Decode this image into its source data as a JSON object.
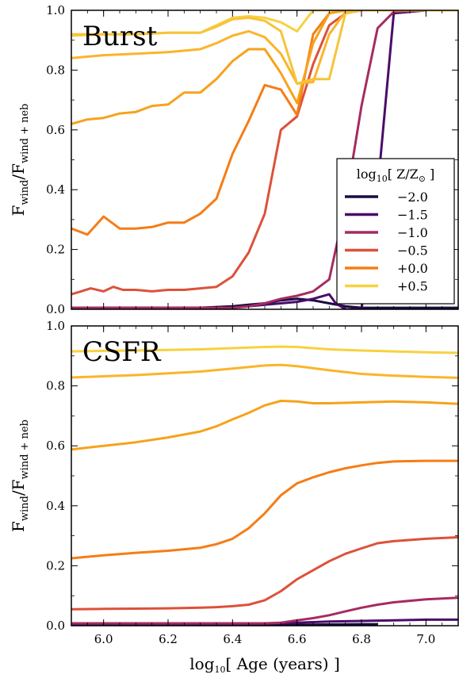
{
  "chart_data": [
    {
      "type": "line",
      "title": "Burst",
      "xlabel": "log10[ Age (years) ]",
      "ylabel": "F_wind/F_wind+neb",
      "xlim": [
        5.9,
        7.1
      ],
      "ylim": [
        0.0,
        1.0
      ],
      "xticks": [
        "6.0",
        "6.2",
        "6.4",
        "6.6",
        "6.8",
        "7.0"
      ],
      "yticks": [
        "0.0",
        "0.2",
        "0.4",
        "0.6",
        "0.8",
        "1.0"
      ],
      "grid": false,
      "legend": {
        "placement": "right",
        "title": "log10[ Z/Z⊙ ]",
        "entries": [
          "−2.0",
          "−1.5",
          "−1.0",
          "−0.5",
          "+0.0",
          "+0.5"
        ]
      },
      "series": [
        {
          "name": "−2.0",
          "color": "#1b0c41",
          "x": [
            5.9,
            6.0,
            6.1,
            6.2,
            6.3,
            6.4,
            6.45,
            6.5,
            6.55,
            6.6,
            6.65,
            6.7,
            6.75,
            6.8,
            6.85,
            6.9,
            7.0,
            7.1
          ],
          "y": [
            0.005,
            0.005,
            0.005,
            0.005,
            0.005,
            0.01,
            0.015,
            0.02,
            0.03,
            0.035,
            0.03,
            0.02,
            0.01,
            0.005,
            0.005,
            0.005,
            0.005,
            0.005
          ]
        },
        {
          "name": "−1.5",
          "color": "#4a0c6b",
          "x": [
            5.9,
            6.0,
            6.1,
            6.2,
            6.3,
            6.4,
            6.45,
            6.5,
            6.55,
            6.6,
            6.65,
            6.7,
            6.72,
            6.75,
            6.8,
            6.85,
            6.9,
            7.0,
            7.1
          ],
          "y": [
            0.0,
            0.005,
            0.005,
            0.005,
            0.005,
            0.005,
            0.01,
            0.015,
            0.02,
            0.025,
            0.035,
            0.05,
            0.02,
            0.0,
            0.0,
            0.4,
            0.99,
            1.0,
            1.0
          ]
        },
        {
          "name": "−1.0",
          "color": "#a52c60",
          "x": [
            5.9,
            6.0,
            6.1,
            6.2,
            6.3,
            6.4,
            6.45,
            6.5,
            6.55,
            6.6,
            6.65,
            6.7,
            6.75,
            6.8,
            6.85,
            6.9,
            7.0,
            7.1
          ],
          "y": [
            0.005,
            0.005,
            0.005,
            0.005,
            0.005,
            0.005,
            0.01,
            0.02,
            0.035,
            0.045,
            0.06,
            0.1,
            0.35,
            0.68,
            0.94,
            0.995,
            1.0,
            1.0
          ]
        },
        {
          "name": "−0.5",
          "color": "#dd513a",
          "x": [
            5.9,
            5.93,
            5.96,
            6.0,
            6.03,
            6.06,
            6.1,
            6.15,
            6.2,
            6.25,
            6.3,
            6.35,
            6.4,
            6.45,
            6.5,
            6.55,
            6.6,
            6.65,
            6.7,
            6.75,
            6.8,
            6.85,
            6.9,
            7.0,
            7.1
          ],
          "y": [
            0.05,
            0.06,
            0.07,
            0.06,
            0.075,
            0.065,
            0.065,
            0.06,
            0.065,
            0.065,
            0.07,
            0.075,
            0.11,
            0.19,
            0.32,
            0.6,
            0.645,
            0.82,
            0.95,
            0.99,
            1.0,
            1.0,
            1.0,
            1.0,
            1.0
          ]
        },
        {
          "name": "+0.0",
          "color": "#f57d15",
          "x": [
            5.9,
            5.95,
            6.0,
            6.05,
            6.1,
            6.15,
            6.2,
            6.25,
            6.3,
            6.35,
            6.4,
            6.45,
            6.5,
            6.55,
            6.6,
            6.65,
            6.7,
            6.75,
            6.8,
            6.85,
            6.9,
            7.0,
            7.1
          ],
          "y": [
            0.27,
            0.25,
            0.31,
            0.27,
            0.27,
            0.275,
            0.29,
            0.29,
            0.32,
            0.37,
            0.52,
            0.63,
            0.75,
            0.735,
            0.65,
            0.92,
            0.99,
            1.0,
            1.0,
            1.0,
            1.0,
            1.0,
            1.0
          ]
        },
        {
          "name": "+0.5",
          "color": "#f8d13f",
          "x": [
            5.9,
            6.0,
            6.1,
            6.2,
            6.3,
            6.35,
            6.4,
            6.45,
            6.5,
            6.55,
            6.6,
            6.65,
            6.7,
            6.75,
            6.8,
            6.85,
            6.9,
            7.0,
            7.1
          ],
          "y": [
            0.915,
            0.92,
            0.92,
            0.925,
            0.925,
            0.95,
            0.975,
            0.98,
            0.975,
            0.96,
            0.93,
            1.0,
            1.0,
            1.0,
            1.0,
            1.0,
            1.0,
            1.0,
            1.0
          ]
        },
        {
          "name": "",
          "color": "#f7a21b",
          "x": [
            5.9,
            5.95,
            6.0,
            6.05,
            6.1,
            6.15,
            6.2,
            6.25,
            6.3,
            6.35,
            6.4,
            6.45,
            6.5,
            6.55,
            6.6,
            6.65,
            6.7,
            6.75,
            6.8,
            7.1
          ],
          "y": [
            0.62,
            0.635,
            0.64,
            0.655,
            0.66,
            0.68,
            0.685,
            0.725,
            0.725,
            0.77,
            0.83,
            0.87,
            0.87,
            0.79,
            0.69,
            0.89,
            0.99,
            1.0,
            1.0,
            1.0
          ]
        },
        {
          "name": "",
          "color": "#fbb42a",
          "x": [
            5.9,
            6.0,
            6.1,
            6.2,
            6.3,
            6.35,
            6.4,
            6.45,
            6.5,
            6.55,
            6.6,
            6.65,
            6.7,
            6.75,
            6.8,
            7.1
          ],
          "y": [
            0.84,
            0.85,
            0.855,
            0.86,
            0.87,
            0.89,
            0.915,
            0.93,
            0.91,
            0.855,
            0.755,
            0.76,
            0.92,
            0.995,
            1.0,
            1.0
          ]
        },
        {
          "name": "",
          "color": "#f6c33a",
          "x": [
            5.9,
            6.0,
            6.1,
            6.2,
            6.3,
            6.35,
            6.4,
            6.45,
            6.5,
            6.55,
            6.6,
            6.65,
            6.7,
            6.75,
            6.8,
            7.1
          ],
          "y": [
            0.92,
            0.92,
            0.92,
            0.925,
            0.925,
            0.945,
            0.97,
            0.975,
            0.965,
            0.93,
            0.755,
            0.77,
            0.77,
            0.99,
            1.0,
            1.0
          ]
        }
      ]
    },
    {
      "type": "line",
      "title": "CSFR",
      "xlabel": "log10[ Age (years) ]",
      "ylabel": "F_wind/F_wind+neb",
      "xlim": [
        5.9,
        7.1
      ],
      "ylim": [
        0.0,
        1.0
      ],
      "xticks": [
        "6.0",
        "6.2",
        "6.4",
        "6.6",
        "6.8",
        "7.0"
      ],
      "yticks": [
        "0.0",
        "0.2",
        "0.4",
        "0.6",
        "0.8",
        "1.0"
      ],
      "grid": false,
      "series": [
        {
          "name": "−2.0",
          "color": "#1b0c41",
          "x": [
            5.9,
            6.0,
            6.2,
            6.4,
            6.6,
            6.7,
            6.8,
            6.85
          ],
          "y": [
            0.002,
            0.002,
            0.002,
            0.002,
            0.003,
            0.004,
            0.005,
            0.005
          ]
        },
        {
          "name": "−1.5",
          "color": "#4a0c6b",
          "x": [
            5.9,
            6.0,
            6.2,
            6.4,
            6.5,
            6.55,
            6.6,
            6.65,
            6.7,
            6.8,
            6.9,
            7.0,
            7.1
          ],
          "y": [
            0.005,
            0.005,
            0.005,
            0.005,
            0.006,
            0.008,
            0.01,
            0.012,
            0.014,
            0.016,
            0.018,
            0.02,
            0.02
          ]
        },
        {
          "name": "−1.0",
          "color": "#a52c60",
          "x": [
            5.9,
            6.0,
            6.2,
            6.4,
            6.5,
            6.55,
            6.6,
            6.65,
            6.7,
            6.75,
            6.8,
            6.85,
            6.9,
            7.0,
            7.1
          ],
          "y": [
            0.008,
            0.008,
            0.008,
            0.008,
            0.008,
            0.01,
            0.018,
            0.025,
            0.035,
            0.048,
            0.06,
            0.07,
            0.078,
            0.088,
            0.093
          ]
        },
        {
          "name": "−0.5",
          "color": "#dd513a",
          "x": [
            5.9,
            6.0,
            6.1,
            6.2,
            6.3,
            6.35,
            6.4,
            6.45,
            6.5,
            6.55,
            6.6,
            6.65,
            6.7,
            6.75,
            6.8,
            6.85,
            6.9,
            7.0,
            7.1
          ],
          "y": [
            0.055,
            0.056,
            0.057,
            0.058,
            0.06,
            0.062,
            0.065,
            0.07,
            0.085,
            0.115,
            0.155,
            0.185,
            0.215,
            0.24,
            0.258,
            0.275,
            0.282,
            0.29,
            0.295
          ]
        },
        {
          "name": "+0.0",
          "color": "#f57d15",
          "x": [
            5.9,
            6.0,
            6.1,
            6.2,
            6.3,
            6.35,
            6.4,
            6.45,
            6.5,
            6.55,
            6.6,
            6.65,
            6.7,
            6.75,
            6.8,
            6.85,
            6.9,
            7.0,
            7.1
          ],
          "y": [
            0.225,
            0.235,
            0.243,
            0.25,
            0.26,
            0.272,
            0.29,
            0.325,
            0.375,
            0.435,
            0.475,
            0.495,
            0.512,
            0.525,
            0.535,
            0.543,
            0.548,
            0.55,
            0.55
          ]
        },
        {
          "name": "",
          "color": "#f7a21b",
          "x": [
            5.9,
            6.0,
            6.1,
            6.2,
            6.3,
            6.35,
            6.4,
            6.45,
            6.5,
            6.55,
            6.6,
            6.65,
            6.7,
            6.8,
            6.9,
            7.0,
            7.1
          ],
          "y": [
            0.588,
            0.6,
            0.612,
            0.628,
            0.648,
            0.665,
            0.688,
            0.71,
            0.735,
            0.75,
            0.748,
            0.742,
            0.742,
            0.745,
            0.748,
            0.745,
            0.74
          ]
        },
        {
          "name": "",
          "color": "#fbb42a",
          "x": [
            5.9,
            6.0,
            6.1,
            6.2,
            6.3,
            6.4,
            6.5,
            6.55,
            6.6,
            6.7,
            6.8,
            6.9,
            7.0,
            7.1
          ],
          "y": [
            0.828,
            0.832,
            0.836,
            0.842,
            0.848,
            0.858,
            0.868,
            0.87,
            0.866,
            0.852,
            0.84,
            0.834,
            0.83,
            0.827
          ]
        },
        {
          "name": "+0.5",
          "color": "#f8d13f",
          "x": [
            5.9,
            6.0,
            6.1,
            6.2,
            6.3,
            6.4,
            6.5,
            6.55,
            6.6,
            6.7,
            6.8,
            6.9,
            7.0,
            7.1
          ],
          "y": [
            0.915,
            0.917,
            0.918,
            0.92,
            0.922,
            0.926,
            0.93,
            0.931,
            0.93,
            0.922,
            0.918,
            0.915,
            0.912,
            0.91
          ]
        }
      ]
    }
  ]
}
